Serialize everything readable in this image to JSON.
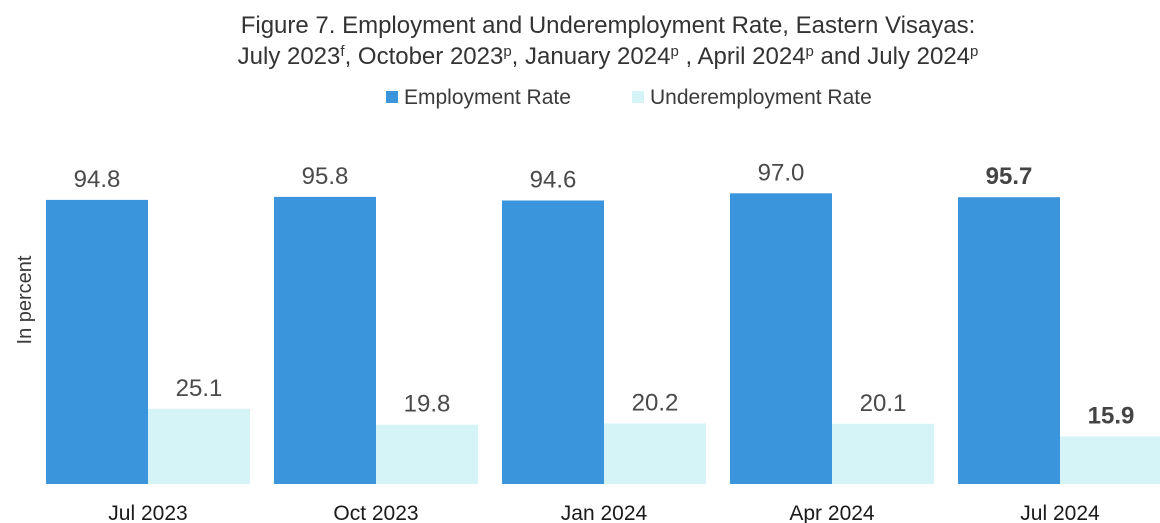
{
  "chart_data": {
    "type": "bar",
    "title_line1": "Figure 7. Employment and Underemployment Rate, Eastern Visayas:",
    "title_line2": {
      "segments": [
        {
          "text": "July 2023",
          "sup": "f"
        },
        {
          "text": ", October 2023",
          "sup": "p"
        },
        {
          "text": ", January 2024",
          "sup": "p"
        },
        {
          "text": " , April 2024",
          "sup": "p"
        },
        {
          "text": " and July 2024",
          "sup": "p"
        }
      ]
    },
    "ylabel": "In percent",
    "xlabel": "",
    "categories": [
      "Jul 2023",
      "Oct 2023",
      "Jan 2024",
      "Apr 2024",
      "Jul 2024"
    ],
    "series": [
      {
        "name": "Employment Rate",
        "color": "#3b95dc",
        "values": [
          94.8,
          95.8,
          94.6,
          97.0,
          95.7
        ],
        "labels": [
          "94.8",
          "95.8",
          "94.6",
          "97.0",
          "95.7"
        ],
        "bold": [
          false,
          false,
          false,
          false,
          true
        ]
      },
      {
        "name": "Underemployment Rate",
        "color": "#d5f4f8",
        "values": [
          25.1,
          19.8,
          20.2,
          20.1,
          15.9
        ],
        "labels": [
          "25.1",
          "19.8",
          "20.2",
          "20.1",
          "15.9"
        ],
        "bold": [
          false,
          false,
          false,
          false,
          true
        ]
      }
    ],
    "ylim": [
      0,
      100
    ],
    "grid": false,
    "legend_position": "top-center"
  }
}
